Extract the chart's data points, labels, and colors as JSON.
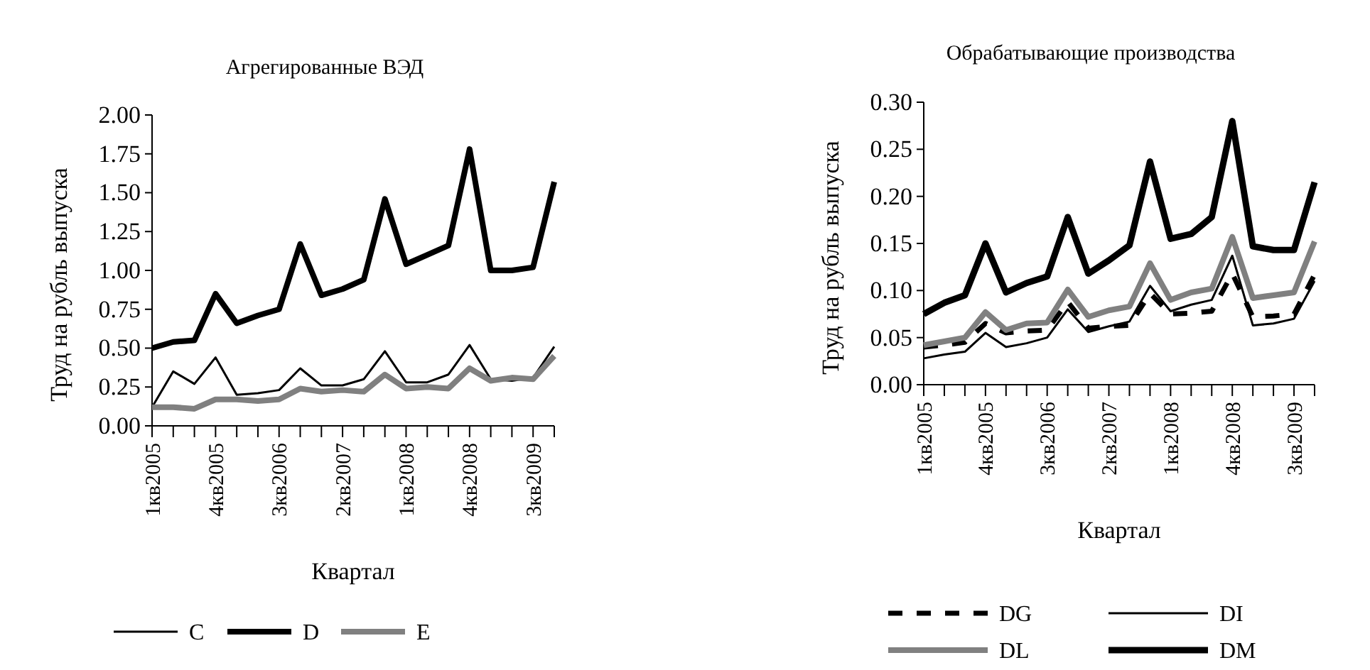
{
  "chart_data": [
    {
      "type": "line",
      "title": "Агрегированные ВЭД",
      "xlabel": "Квартал",
      "ylabel": "Труд на рубль выпуска",
      "categories": [
        "1кв2005",
        null,
        null,
        "4кв2005",
        null,
        null,
        "3кв2006",
        null,
        null,
        "2кв2007",
        null,
        null,
        "1кв2008",
        null,
        null,
        "4кв2008",
        null,
        null,
        "3кв2009",
        null
      ],
      "series": [
        {
          "name": "C",
          "color": "#000000",
          "values": [
            0.12,
            0.35,
            0.27,
            0.44,
            0.2,
            0.21,
            0.23,
            0.37,
            0.26,
            0.26,
            0.3,
            0.48,
            0.28,
            0.28,
            0.33,
            0.52,
            0.3,
            0.29,
            0.31,
            0.51
          ]
        },
        {
          "name": "D",
          "color": "#000000",
          "values": [
            0.5,
            0.54,
            0.55,
            0.85,
            0.66,
            0.71,
            0.75,
            1.17,
            0.84,
            0.88,
            0.94,
            1.46,
            1.04,
            1.1,
            1.16,
            1.78,
            1.0,
            1.0,
            1.02,
            1.57
          ]
        },
        {
          "name": "E",
          "color": "#808080",
          "values": [
            0.12,
            0.12,
            0.11,
            0.17,
            0.17,
            0.16,
            0.17,
            0.24,
            0.22,
            0.23,
            0.22,
            0.33,
            0.24,
            0.25,
            0.24,
            0.37,
            0.29,
            0.31,
            0.3,
            0.45
          ]
        }
      ],
      "ylim": [
        0,
        2
      ],
      "yticks": [
        {
          "value": 0,
          "label": "0.00"
        },
        {
          "value": 0.25,
          "label": "0.25"
        },
        {
          "value": 0.5,
          "label": "0.50"
        },
        {
          "value": 0.75,
          "label": "0.75"
        },
        {
          "value": 1,
          "label": "1.00"
        },
        {
          "value": 1.25,
          "label": "1.25"
        },
        {
          "value": 1.5,
          "label": "1.50"
        },
        {
          "value": 1.75,
          "label": "1.75"
        },
        {
          "value": 2,
          "label": "2.00"
        }
      ],
      "grid": false,
      "legend": "bottom",
      "marker": "none",
      "line_style": "solid"
    },
    {
      "type": "line",
      "title": "Обрабатывающие производства",
      "xlabel": "Квартал",
      "ylabel": "Труд на рубль выпуска",
      "categories": [
        "1кв2005",
        null,
        null,
        "4кв2005",
        null,
        null,
        "3кв2006",
        null,
        null,
        "2кв2007",
        null,
        null,
        "1кв2008",
        null,
        null,
        "4кв2008",
        null,
        null,
        "3кв2009",
        null
      ],
      "series": [
        {
          "name": "DG",
          "color": "#000000",
          "line_style": "dashed",
          "values": [
            0.04,
            0.042,
            0.045,
            0.065,
            0.055,
            0.057,
            0.058,
            0.088,
            0.06,
            0.062,
            0.063,
            0.097,
            0.075,
            0.076,
            0.078,
            0.118,
            0.072,
            0.073,
            0.075,
            0.117
          ]
        },
        {
          "name": "DI",
          "color": "#000000",
          "values": [
            0.028,
            0.032,
            0.035,
            0.055,
            0.04,
            0.044,
            0.05,
            0.08,
            0.056,
            0.062,
            0.067,
            0.105,
            0.078,
            0.085,
            0.09,
            0.137,
            0.063,
            0.065,
            0.07,
            0.11
          ]
        },
        {
          "name": "DL",
          "color": "#808080",
          "values": [
            0.042,
            0.046,
            0.05,
            0.077,
            0.058,
            0.065,
            0.066,
            0.101,
            0.072,
            0.079,
            0.083,
            0.129,
            0.09,
            0.098,
            0.102,
            0.157,
            0.092,
            0.095,
            0.098,
            0.152
          ]
        },
        {
          "name": "DM",
          "color": "#000000",
          "values": [
            0.075,
            0.087,
            0.095,
            0.15,
            0.098,
            0.108,
            0.115,
            0.178,
            0.118,
            0.132,
            0.148,
            0.237,
            0.155,
            0.16,
            0.178,
            0.28,
            0.147,
            0.143,
            0.143,
            0.215
          ]
        }
      ],
      "ylim": [
        0,
        0.3
      ],
      "yticks": [
        {
          "value": 0,
          "label": "0.00"
        },
        {
          "value": 0.05,
          "label": "0.05"
        },
        {
          "value": 0.1,
          "label": "0.10"
        },
        {
          "value": 0.15,
          "label": "0.15"
        },
        {
          "value": 0.2,
          "label": "0.20"
        },
        {
          "value": 0.25,
          "label": "0.25"
        },
        {
          "value": 0.3,
          "label": "0.30"
        }
      ],
      "grid": false,
      "legend": "bottom",
      "marker": "none",
      "line_style": "solid"
    }
  ]
}
